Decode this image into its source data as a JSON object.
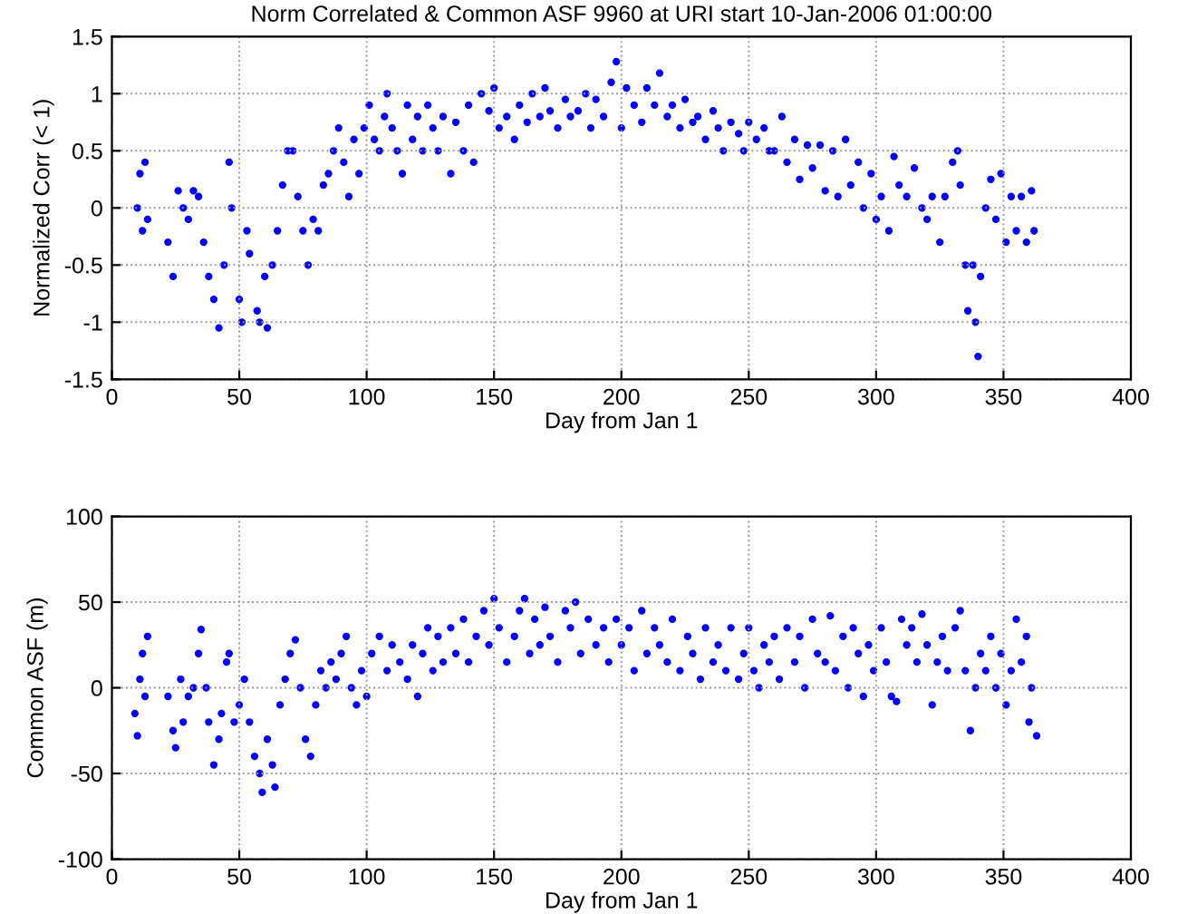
{
  "chart_data": [
    {
      "type": "scatter",
      "title": "Norm Correlated & Common ASF 9960 at URI start 10-Jan-2006 01:00:00",
      "xlabel": "Day from Jan 1",
      "ylabel": "Normalized Corr (< 1)",
      "xlim": [
        0,
        400
      ],
      "ylim": [
        -1.5,
        1.5
      ],
      "xticks": [
        0,
        50,
        100,
        150,
        200,
        250,
        300,
        350,
        400
      ],
      "yticks": [
        -1.5,
        -1,
        -0.5,
        0,
        0.5,
        1,
        1.5
      ],
      "grid": true,
      "marker": "circle",
      "series": [
        {
          "color": "#0000ff",
          "x": [
            10,
            11,
            12,
            13,
            14,
            22,
            24,
            26,
            28,
            30,
            32,
            34,
            36,
            38,
            40,
            42,
            44,
            46,
            47,
            50,
            51,
            53,
            54,
            57,
            58,
            60,
            61,
            63,
            65,
            67,
            69,
            71,
            73,
            75,
            77,
            79,
            81,
            83,
            85,
            87,
            89,
            91,
            93,
            95,
            97,
            99,
            101,
            103,
            105,
            107,
            108,
            110,
            112,
            114,
            116,
            118,
            120,
            122,
            124,
            126,
            128,
            130,
            133,
            135,
            138,
            140,
            142,
            145,
            148,
            150,
            152,
            155,
            158,
            160,
            163,
            165,
            168,
            170,
            172,
            175,
            178,
            180,
            183,
            186,
            188,
            190,
            193,
            196,
            198,
            200,
            202,
            205,
            208,
            210,
            213,
            215,
            218,
            220,
            223,
            225,
            228,
            230,
            233,
            236,
            238,
            240,
            243,
            246,
            248,
            250,
            253,
            256,
            258,
            260,
            263,
            265,
            268,
            270,
            273,
            275,
            278,
            280,
            283,
            285,
            288,
            290,
            293,
            295,
            298,
            300,
            302,
            305,
            307,
            309,
            312,
            315,
            318,
            320,
            322,
            325,
            327,
            330,
            332,
            333,
            335,
            336,
            338,
            339,
            340,
            341,
            343,
            345,
            347,
            349,
            351,
            353,
            355,
            357,
            359,
            361,
            362
          ],
          "values": [
            0,
            0.3,
            -0.2,
            0.4,
            -0.1,
            -0.3,
            -0.6,
            0.15,
            0,
            -0.1,
            0.15,
            0.1,
            -0.3,
            -0.6,
            -0.8,
            -1.05,
            -0.5,
            0.4,
            0,
            -0.8,
            -1.0,
            -0.2,
            -0.4,
            -0.9,
            -1.0,
            -0.6,
            -1.05,
            -0.5,
            -0.2,
            0.2,
            0.5,
            0.5,
            0.1,
            -0.2,
            -0.5,
            -0.1,
            -0.2,
            0.2,
            0.3,
            0.5,
            0.7,
            0.4,
            0.1,
            0.6,
            0.3,
            0.7,
            0.9,
            0.6,
            0.5,
            0.8,
            1.0,
            0.7,
            0.5,
            0.3,
            0.9,
            0.6,
            0.8,
            0.5,
            0.9,
            0.7,
            0.5,
            0.8,
            0.3,
            0.75,
            0.5,
            0.9,
            0.4,
            1.0,
            0.85,
            1.05,
            0.7,
            0.8,
            0.6,
            0.9,
            0.75,
            1.0,
            0.8,
            1.05,
            0.85,
            0.7,
            0.95,
            0.8,
            0.85,
            1.0,
            0.7,
            0.95,
            0.8,
            1.1,
            1.28,
            0.7,
            1.05,
            0.9,
            0.75,
            1.05,
            0.9,
            1.18,
            0.8,
            0.9,
            0.7,
            0.95,
            0.75,
            0.8,
            0.6,
            0.85,
            0.7,
            0.5,
            0.75,
            0.65,
            0.5,
            0.75,
            0.6,
            0.7,
            0.5,
            0.5,
            0.8,
            0.4,
            0.6,
            0.25,
            0.55,
            0.35,
            0.55,
            0.15,
            0.5,
            0.1,
            0.6,
            0.2,
            0.4,
            0,
            0.3,
            -0.1,
            0.1,
            -0.2,
            0.45,
            0.2,
            0.1,
            0.35,
            0,
            -0.1,
            0.1,
            -0.3,
            0.1,
            0.4,
            0.5,
            0.2,
            -0.5,
            -0.9,
            -0.5,
            -1.0,
            -1.3,
            -0.6,
            0,
            0.25,
            -0.1,
            0.3,
            -0.3,
            0.1,
            -0.2,
            0.1,
            -0.3,
            0.15,
            -0.2
          ]
        }
      ]
    },
    {
      "type": "scatter",
      "xlabel": "Day from Jan 1",
      "ylabel": "Common ASF (m)",
      "xlim": [
        0,
        400
      ],
      "ylim": [
        -100,
        100
      ],
      "xticks": [
        0,
        50,
        100,
        150,
        200,
        250,
        300,
        350,
        400
      ],
      "yticks": [
        -100,
        -50,
        0,
        50,
        100
      ],
      "grid": true,
      "marker": "circle",
      "series": [
        {
          "color": "#0000ff",
          "x": [
            9,
            10,
            11,
            12,
            13,
            14,
            22,
            24,
            25,
            27,
            28,
            30,
            32,
            34,
            35,
            37,
            38,
            40,
            42,
            43,
            45,
            46,
            48,
            50,
            52,
            54,
            56,
            58,
            59,
            61,
            63,
            64,
            66,
            68,
            70,
            72,
            74,
            76,
            78,
            80,
            82,
            84,
            86,
            88,
            90,
            92,
            94,
            96,
            98,
            100,
            102,
            105,
            108,
            110,
            113,
            116,
            118,
            120,
            122,
            124,
            126,
            128,
            130,
            133,
            135,
            138,
            140,
            143,
            146,
            148,
            150,
            152,
            155,
            158,
            160,
            162,
            164,
            166,
            168,
            170,
            172,
            175,
            178,
            180,
            182,
            184,
            187,
            190,
            193,
            195,
            198,
            200,
            203,
            205,
            208,
            210,
            213,
            215,
            218,
            220,
            223,
            226,
            228,
            231,
            233,
            236,
            238,
            241,
            243,
            246,
            248,
            250,
            252,
            254,
            256,
            258,
            260,
            262,
            265,
            268,
            270,
            272,
            275,
            277,
            280,
            282,
            284,
            287,
            289,
            291,
            293,
            295,
            297,
            299,
            302,
            304,
            306,
            308,
            310,
            312,
            314,
            316,
            318,
            320,
            322,
            324,
            326,
            328,
            331,
            333,
            335,
            337,
            339,
            341,
            343,
            345,
            347,
            349,
            351,
            353,
            355,
            357,
            359,
            360,
            361,
            363
          ],
          "values": [
            -15,
            -28,
            5,
            20,
            -5,
            30,
            -5,
            -25,
            -35,
            5,
            -20,
            -5,
            0,
            20,
            34,
            0,
            -20,
            -45,
            -30,
            -15,
            15,
            20,
            -20,
            -10,
            5,
            -20,
            -40,
            -50,
            -61,
            -30,
            -45,
            -58,
            -10,
            5,
            20,
            28,
            0,
            -30,
            -40,
            -10,
            10,
            0,
            15,
            5,
            20,
            30,
            0,
            -10,
            10,
            -5,
            20,
            30,
            10,
            25,
            15,
            5,
            25,
            -5,
            20,
            35,
            10,
            30,
            15,
            35,
            20,
            40,
            15,
            30,
            45,
            25,
            52,
            35,
            15,
            30,
            45,
            52,
            20,
            40,
            25,
            47,
            30,
            15,
            45,
            35,
            50,
            20,
            40,
            25,
            35,
            15,
            40,
            25,
            35,
            10,
            45,
            20,
            35,
            25,
            15,
            40,
            10,
            30,
            20,
            5,
            35,
            15,
            25,
            10,
            35,
            5,
            20,
            35,
            10,
            0,
            25,
            15,
            30,
            5,
            35,
            15,
            30,
            0,
            40,
            20,
            15,
            42,
            10,
            30,
            0,
            35,
            20,
            -5,
            25,
            10,
            35,
            15,
            -5,
            -8,
            40,
            25,
            35,
            15,
            43,
            25,
            -10,
            15,
            30,
            10,
            35,
            45,
            10,
            -25,
            0,
            20,
            10,
            30,
            0,
            20,
            -10,
            10,
            40,
            15,
            30,
            -20,
            0,
            -28
          ]
        }
      ]
    }
  ]
}
